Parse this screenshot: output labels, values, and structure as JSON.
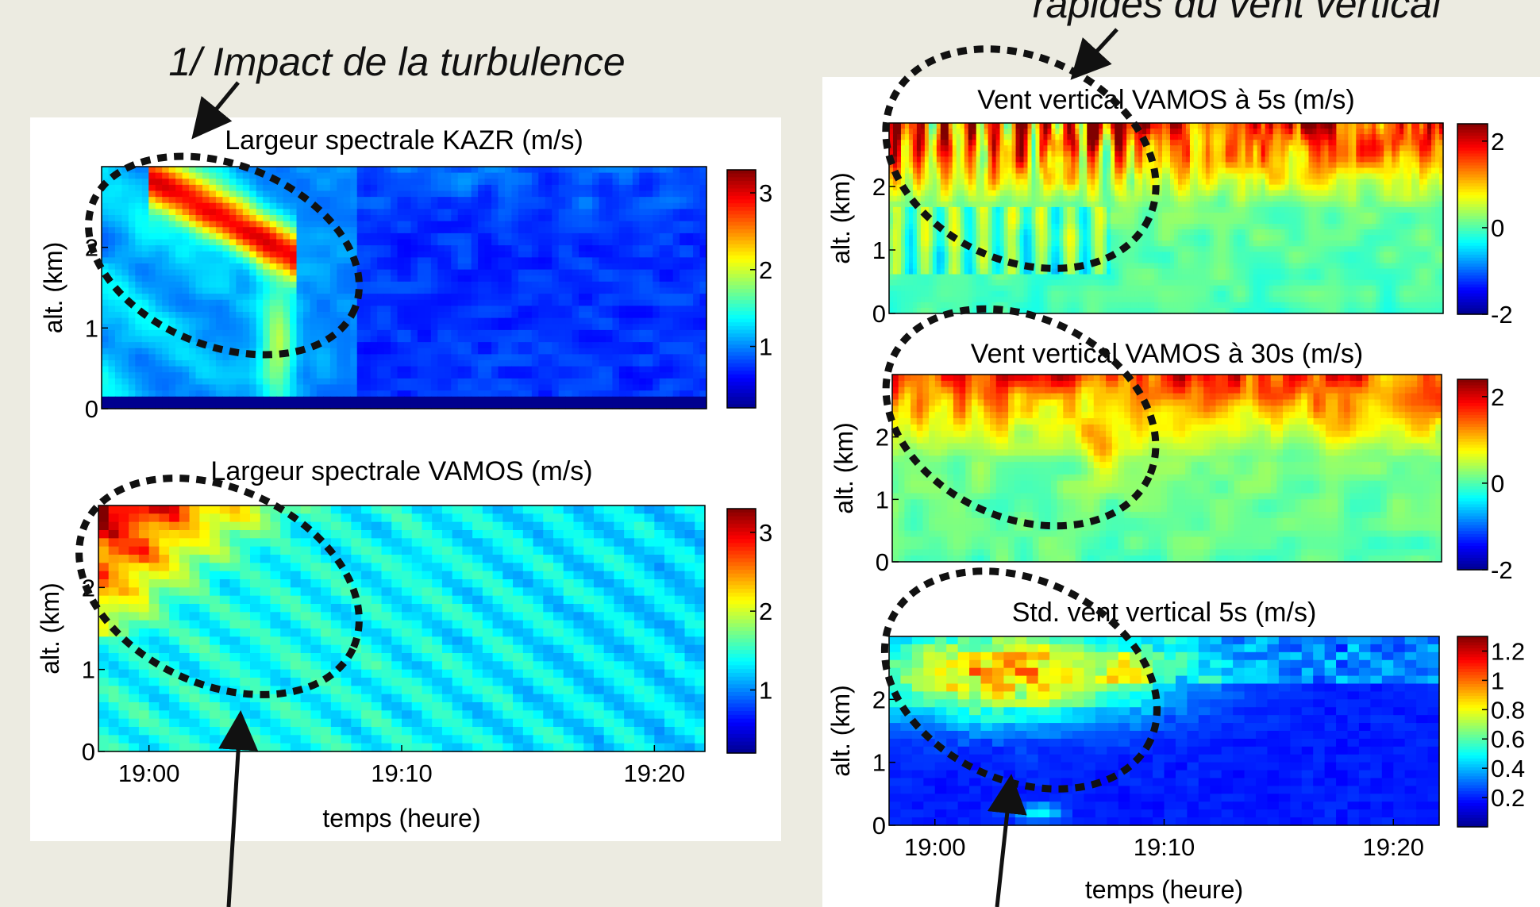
{
  "annotations": {
    "turbulence": "1/ Impact de la turbulence",
    "fluctuations": "rapides du vent vertical"
  },
  "colormap": [
    "#00008F",
    "#0000FF",
    "#007FFF",
    "#00FFFF",
    "#7FFF7F",
    "#FFFF00",
    "#FF7F00",
    "#FF0000",
    "#800000"
  ],
  "chart_data": [
    {
      "type": "heatmap",
      "id": "kazr",
      "title": "Largeur spectrale KAZR (m/s)",
      "ylabel": "alt. (km)",
      "xlabel": "",
      "xlim": [
        "18:58",
        "19:22"
      ],
      "ylim": [
        0,
        3
      ],
      "yticks": [
        0,
        1,
        2
      ],
      "xticks": [],
      "clim": [
        0.2,
        3.3
      ],
      "colorbar_ticks": [
        "1",
        "2",
        "3"
      ],
      "colorbar_tick_values": [
        1,
        2,
        3
      ]
    },
    {
      "type": "heatmap",
      "id": "vamos_width",
      "title": "Largeur spectrale VAMOS (m/s)",
      "ylabel": "alt. (km)",
      "xlabel": "temps (heure)",
      "xlim": [
        "18:58",
        "19:22"
      ],
      "ylim": [
        0,
        3
      ],
      "yticks": [
        0,
        1,
        2
      ],
      "xticks": [
        "19:00",
        "19:10",
        "19:20"
      ],
      "clim": [
        0.2,
        3.3
      ],
      "colorbar_ticks": [
        "1",
        "2",
        "3"
      ],
      "colorbar_tick_values": [
        1,
        2,
        3
      ]
    },
    {
      "type": "heatmap",
      "id": "w5s",
      "title": "Vent vertical VAMOS à 5s (m/s)",
      "ylabel": "alt. (km)",
      "xlabel": "",
      "xlim": [
        "18:58",
        "19:22"
      ],
      "ylim": [
        0,
        3
      ],
      "yticks": [
        0,
        1,
        2
      ],
      "xticks": [],
      "clim": [
        -2,
        2.4
      ],
      "colorbar_ticks": [
        "2",
        "0",
        "-2"
      ],
      "colorbar_tick_values": [
        2,
        0,
        -2
      ]
    },
    {
      "type": "heatmap",
      "id": "w30s",
      "title": "Vent vertical VAMOS à 30s (m/s)",
      "ylabel": "alt. (km)",
      "xlabel": "",
      "xlim": [
        "18:58",
        "19:22"
      ],
      "ylim": [
        0,
        3
      ],
      "yticks": [
        0,
        1,
        2
      ],
      "xticks": [],
      "clim": [
        -2,
        2.4
      ],
      "colorbar_ticks": [
        "2",
        "0",
        "-2"
      ],
      "colorbar_tick_values": [
        2,
        0,
        -2
      ]
    },
    {
      "type": "heatmap",
      "id": "std5s",
      "title": "Std. vent vertical 5s (m/s)",
      "ylabel": "alt. (km)",
      "xlabel": "temps (heure)",
      "xlim": [
        "18:58",
        "19:22"
      ],
      "ylim": [
        0,
        3
      ],
      "yticks": [
        0,
        1,
        2
      ],
      "xticks": [
        "19:00",
        "19:10",
        "19:20"
      ],
      "clim": [
        0,
        1.3
      ],
      "colorbar_ticks": [
        "1.2",
        "1",
        "0.8",
        "0.6",
        "0.4",
        "0.2"
      ],
      "colorbar_tick_values": [
        1.2,
        1.0,
        0.8,
        0.6,
        0.4,
        0.2
      ]
    }
  ]
}
